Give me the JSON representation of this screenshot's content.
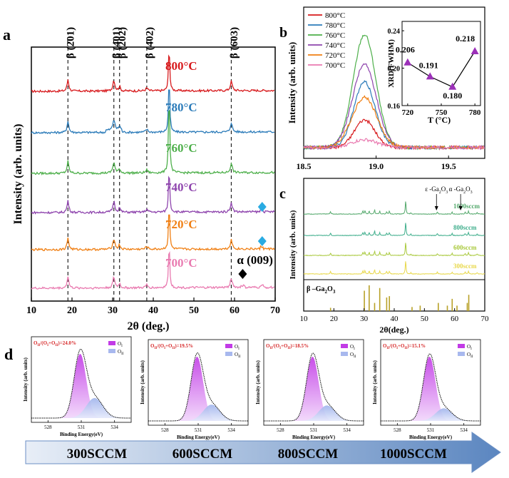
{
  "panels": {
    "a": "a",
    "b": "b",
    "c": "c",
    "d": "d"
  },
  "chart_data": [
    {
      "id": "a",
      "type": "line",
      "xlabel": "2θ (deg.)",
      "ylabel": "Intensity (arb. units)",
      "xlim": [
        10,
        70
      ],
      "xticks": [
        10,
        20,
        30,
        40,
        50,
        60,
        70
      ],
      "peak_labels": [
        {
          "x": 19,
          "label": "β (2̄01)"
        },
        {
          "x": 30.3,
          "label": "β (4̄01)"
        },
        {
          "x": 31.7,
          "label": "β (202)"
        },
        {
          "x": 38.4,
          "label": "β (4̄02)"
        },
        {
          "x": 59.2,
          "label": "β (6̄03)"
        }
      ],
      "series": [
        {
          "name": "800°C",
          "color": "#d7191c"
        },
        {
          "name": "780°C",
          "color": "#2b7bb9"
        },
        {
          "name": "760°C",
          "color": "#4daf4a"
        },
        {
          "name": "740°C",
          "color": "#8e44ad"
        },
        {
          "name": "720°C",
          "color": "#f07f13"
        },
        {
          "name": "700°C",
          "color": "#e97ab0"
        }
      ],
      "markers": [
        {
          "series": "740°C",
          "x": 66.8,
          "shape": "diamond",
          "color": "#29abe2"
        },
        {
          "series": "720°C",
          "x": 66.8,
          "shape": "diamond",
          "color": "#29abe2"
        },
        {
          "series": "700°C",
          "x": 62,
          "shape": "diamond",
          "color": "#000000",
          "label": "α (009)"
        }
      ]
    },
    {
      "id": "b",
      "type": "line",
      "ylabel": "Intensity (arb. units)",
      "xlim": [
        18.5,
        19.75
      ],
      "xticks": [
        18.5,
        19.0,
        19.5
      ],
      "series": [
        {
          "name": "800°C",
          "color": "#d7191c",
          "peak": 0.22
        },
        {
          "name": "780°C",
          "color": "#2b7bb9",
          "peak": 0.52
        },
        {
          "name": "760°C",
          "color": "#4daf4a",
          "peak": 0.9
        },
        {
          "name": "740°C",
          "color": "#8e44ad",
          "peak": 0.66
        },
        {
          "name": "720°C",
          "color": "#f07f13",
          "peak": 0.4
        },
        {
          "name": "700°C",
          "color": "#e97ab0",
          "peak": 0.06
        }
      ],
      "inset": {
        "type": "line",
        "xlabel": "T (°C)",
        "ylabel": "XRD(FWHM)",
        "xlim": [
          715,
          785
        ],
        "ylim": [
          0.16,
          0.25
        ],
        "xticks": [
          720,
          750,
          780
        ],
        "yticks": [
          0.16,
          0.2,
          0.24
        ],
        "x": [
          720,
          740,
          760,
          780
        ],
        "values": [
          0.206,
          0.191,
          0.18,
          0.218
        ],
        "labels": [
          "0.206",
          "0.191",
          "0.180",
          "0.218"
        ],
        "color": "#9b30b8"
      }
    },
    {
      "id": "c",
      "type": "line",
      "xlabel": "2θ(deg.)",
      "ylabel": "Intensity (arb. units)",
      "xlim": [
        10,
        70
      ],
      "xticks": [
        10,
        20,
        30,
        40,
        50,
        60,
        70
      ],
      "series": [
        {
          "name": "1000sccm",
          "color": "#53a86b"
        },
        {
          "name": "800sccm",
          "color": "#3fae8c"
        },
        {
          "name": "600sccm",
          "color": "#a9c93c"
        },
        {
          "name": "300sccm",
          "color": "#e8d84a"
        }
      ],
      "annotations": [
        {
          "x": 54,
          "label_html": "ε -Ga<sub>2</sub>O<sub>3</sub>",
          "label": "ε -Ga2O3"
        },
        {
          "x": 62,
          "label_html": "α -Ga<sub>2</sub>O<sub>3</sub>",
          "label": "α -Ga2O3"
        }
      ],
      "reference": {
        "label": "β –Ga2O3",
        "color": "#b8a128",
        "x": [
          18.9,
          30.1,
          31.7,
          33.5,
          35.2,
          37.5,
          38.4,
          45.9,
          48.6,
          54.6,
          57.6,
          59.2,
          60.8,
          64.2,
          64.7
        ],
        "values": [
          0.12,
          0.75,
          0.95,
          0.3,
          0.85,
          0.5,
          0.55,
          0.15,
          0.2,
          0.3,
          0.2,
          0.45,
          0.2,
          0.3,
          0.6
        ]
      }
    },
    {
      "id": "d",
      "type": "area",
      "ylabel": "Intensity (arb. units)",
      "xlabel": "Binding Energy(eV)",
      "xticks": [
        528,
        531,
        534
      ],
      "legend": [
        "OI",
        "OII"
      ],
      "subplots": [
        {
          "ratio": "OII/(OI+OII)=24.0%",
          "ratio_value": 24.0
        },
        {
          "ratio": "OII/(OI+OII)=19.5%",
          "ratio_value": 19.5
        },
        {
          "ratio": "OII/(OI+OII)=18.5%",
          "ratio_value": 18.5
        },
        {
          "ratio": "OII/(OI+OII)=15.1%",
          "ratio_value": 15.1
        }
      ]
    }
  ],
  "flow": {
    "labels": [
      "300SCCM",
      "600SCCM",
      "800SCCM",
      "1000SCCM"
    ]
  }
}
